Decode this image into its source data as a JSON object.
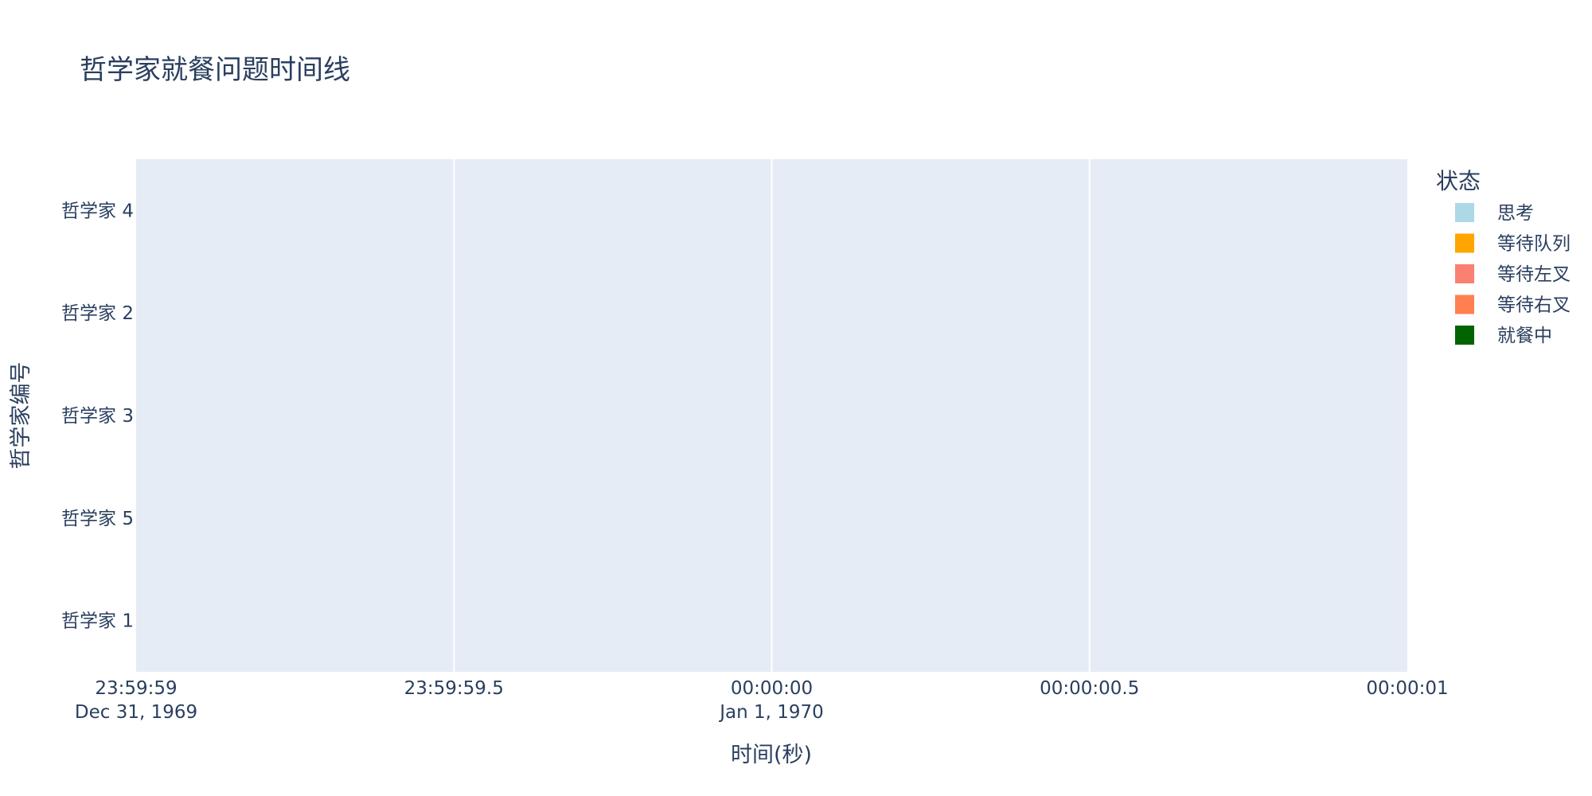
{
  "chart_data": {
    "type": "bar",
    "orientation": "horizontal",
    "title": "哲学家就餐问题时间线",
    "xlabel": "时间(秒)",
    "ylabel": "哲学家编号",
    "categories": [
      "哲学家 4",
      "哲学家 2",
      "哲学家 3",
      "哲学家 5",
      "哲学家 1"
    ],
    "xlim": [
      "1969-12-31T23:59:59",
      "1970-01-01T00:00:01"
    ],
    "x_ticks": [
      {
        "line1": "23:59:59",
        "line2": "Dec 31, 1969"
      },
      {
        "line1": "23:59:59.5",
        "line2": ""
      },
      {
        "line1": "00:00:00",
        "line2": "Jan 1, 1970"
      },
      {
        "line1": "00:00:00.5",
        "line2": ""
      },
      {
        "line1": "00:00:01",
        "line2": ""
      }
    ],
    "legend": {
      "title": "状态",
      "placement": "right",
      "entries": [
        {
          "name": "思考",
          "color": "#add8e6"
        },
        {
          "name": "等待队列",
          "color": "#ffa500"
        },
        {
          "name": "等待左叉",
          "color": "#fa8072"
        },
        {
          "name": "等待右叉",
          "color": "#ff7f50"
        },
        {
          "name": "就餐中",
          "color": "#006400"
        }
      ]
    },
    "series": [],
    "grid": true,
    "background_color": "#e5ecf6",
    "text_color": "#2a3f5f"
  }
}
